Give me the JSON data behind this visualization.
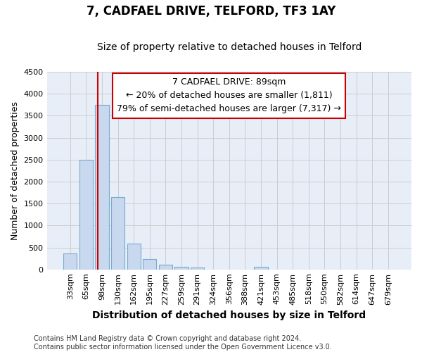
{
  "title": "7, CADFAEL DRIVE, TELFORD, TF3 1AY",
  "subtitle": "Size of property relative to detached houses in Telford",
  "xlabel": "Distribution of detached houses by size in Telford",
  "ylabel": "Number of detached properties",
  "categories": [
    "33sqm",
    "65sqm",
    "98sqm",
    "130sqm",
    "162sqm",
    "195sqm",
    "227sqm",
    "259sqm",
    "291sqm",
    "324sqm",
    "356sqm",
    "388sqm",
    "421sqm",
    "453sqm",
    "485sqm",
    "518sqm",
    "550sqm",
    "582sqm",
    "614sqm",
    "647sqm",
    "679sqm"
  ],
  "values": [
    370,
    2500,
    3750,
    1640,
    590,
    230,
    105,
    60,
    40,
    0,
    0,
    0,
    55,
    0,
    0,
    0,
    0,
    0,
    0,
    0,
    0
  ],
  "bar_color": "#c8d8ee",
  "bar_edge_color": "#7aaad0",
  "grid_color": "#cccccc",
  "background_color": "#e8eef8",
  "vline_color": "#cc0000",
  "vline_x": 1.72,
  "annotation_lines": [
    "7 CADFAEL DRIVE: 89sqm",
    "← 20% of detached houses are smaller (1,811)",
    "79% of semi-detached houses are larger (7,317) →"
  ],
  "footer_lines": [
    "Contains HM Land Registry data © Crown copyright and database right 2024.",
    "Contains public sector information licensed under the Open Government Licence v3.0."
  ],
  "ylim": [
    0,
    4500
  ],
  "yticks": [
    0,
    500,
    1000,
    1500,
    2000,
    2500,
    3000,
    3500,
    4000,
    4500
  ],
  "title_fontsize": 12,
  "subtitle_fontsize": 10,
  "xlabel_fontsize": 10,
  "ylabel_fontsize": 9,
  "tick_fontsize": 8,
  "annotation_fontsize": 9,
  "footer_fontsize": 7
}
